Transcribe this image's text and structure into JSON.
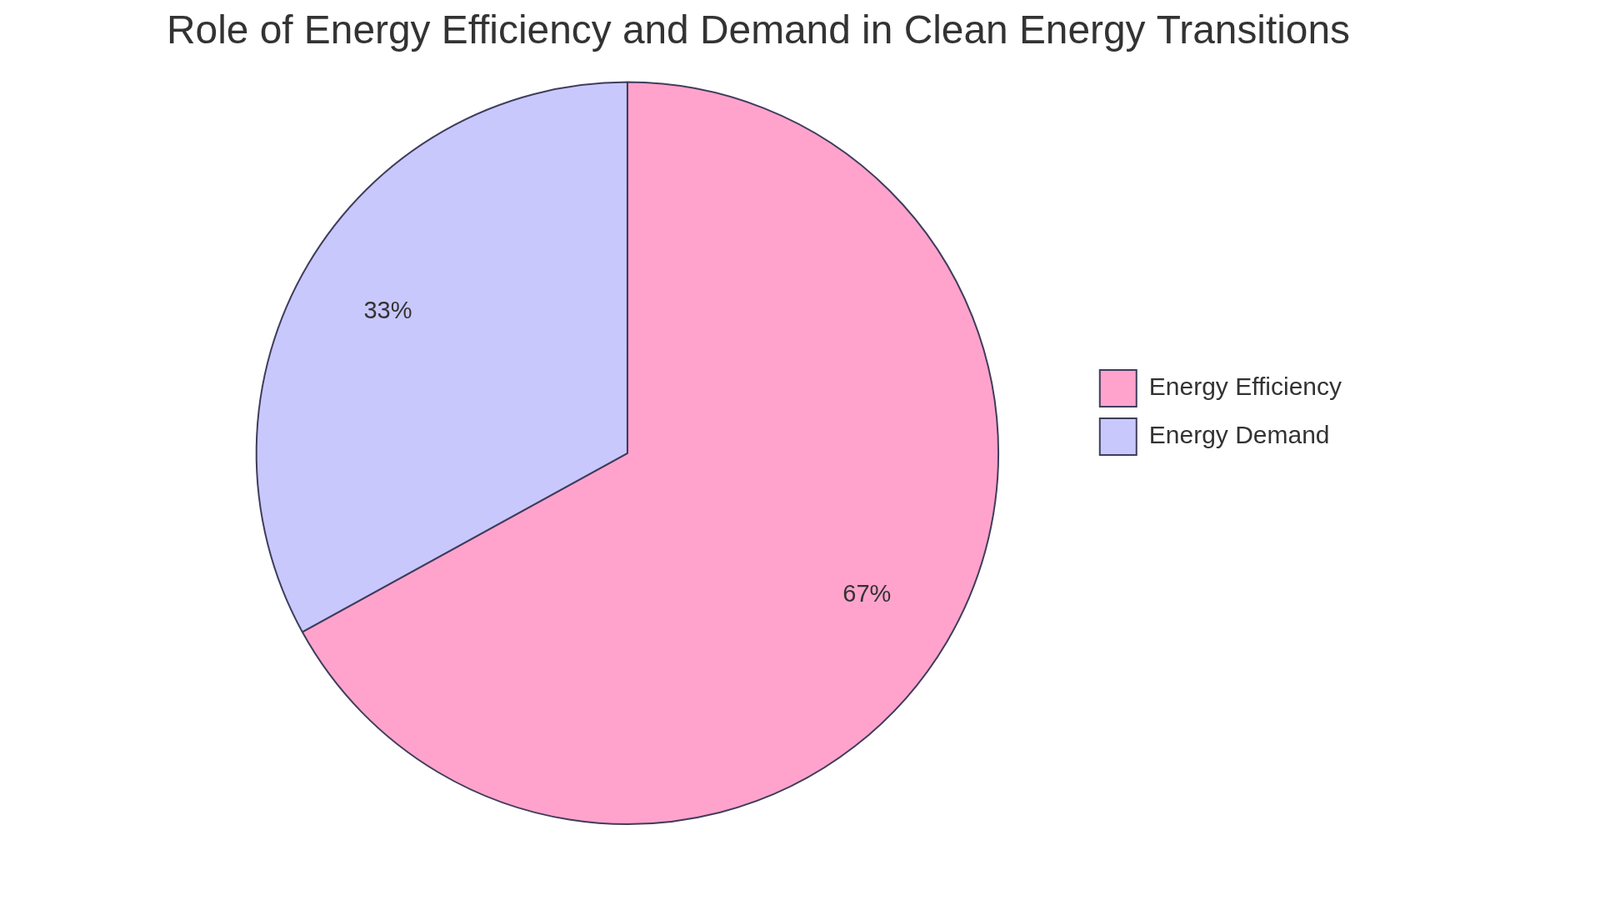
{
  "chart_data": {
    "type": "pie",
    "title": "Role of Energy Efficiency and Demand in Clean Energy Transitions",
    "categories": [
      "Energy Efficiency",
      "Energy Demand"
    ],
    "values": [
      67,
      33
    ],
    "value_labels": [
      "67%",
      "33%"
    ],
    "colors": [
      "#ffa3cc",
      "#c9c8fd"
    ],
    "legend": "right",
    "data_labels": true
  }
}
